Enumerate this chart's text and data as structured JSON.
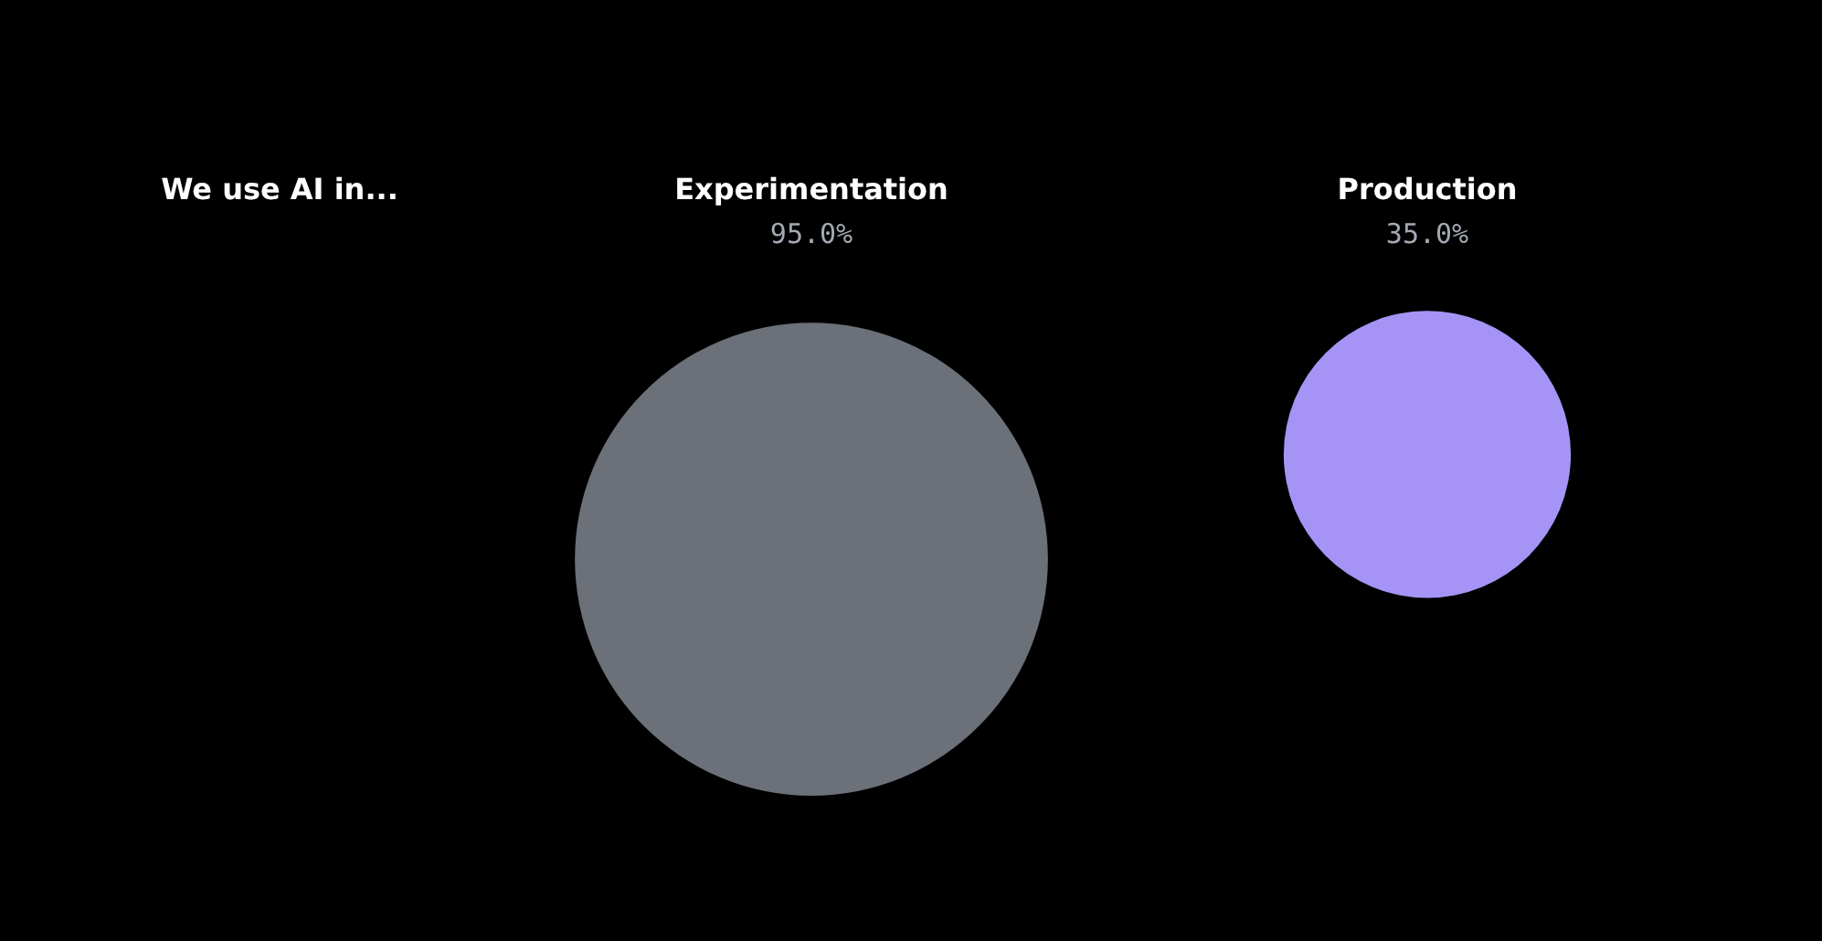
{
  "chart_data": {
    "type": "other",
    "title": "We use AI in...",
    "categories": [
      "Experimentation",
      "Production"
    ],
    "values": [
      95,
      35
    ],
    "value_labels": [
      "95.0%",
      "35.0%"
    ],
    "colors": [
      "#6b7079",
      "#a594f5"
    ]
  }
}
